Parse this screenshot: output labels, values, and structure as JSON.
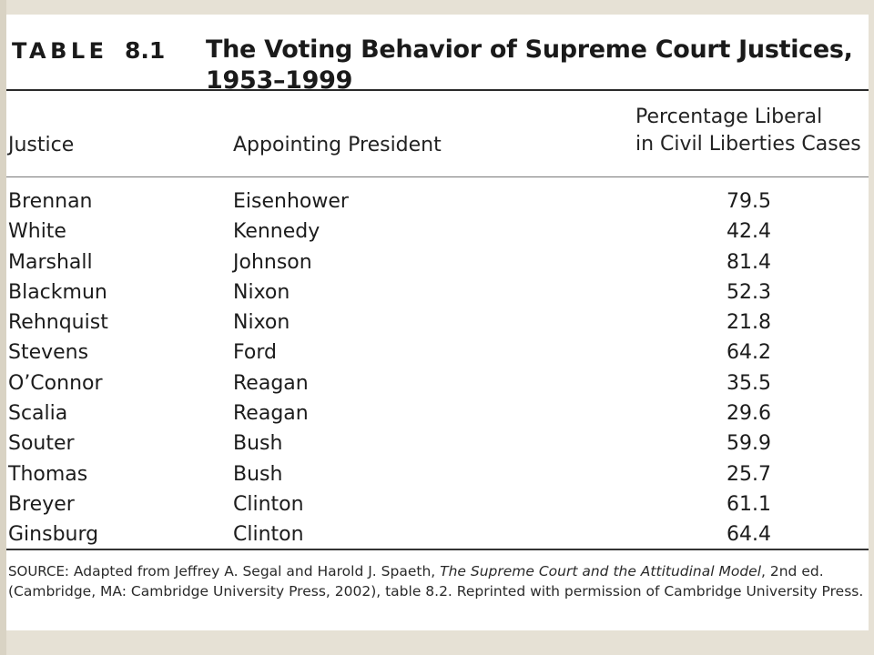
{
  "table": {
    "label": "TABLE",
    "number": "8.1",
    "title_line1": "The Voting Behavior of Supreme Court Justices,",
    "title_line2": "1953–1999"
  },
  "columns": {
    "justice": "Justice",
    "president": "Appointing President",
    "pct_line1": "Percentage Liberal",
    "pct_line2": "in Civil Liberties Cases"
  },
  "rows": [
    {
      "justice": "Brennan",
      "president": "Eisenhower",
      "value": "79.5"
    },
    {
      "justice": "White",
      "president": "Kennedy",
      "value": "42.4"
    },
    {
      "justice": "Marshall",
      "president": "Johnson",
      "value": "81.4"
    },
    {
      "justice": "Blackmun",
      "president": "Nixon",
      "value": "52.3"
    },
    {
      "justice": "Rehnquist",
      "president": "Nixon",
      "value": "21.8"
    },
    {
      "justice": "Stevens",
      "president": "Ford",
      "value": "64.2"
    },
    {
      "justice": "O’Connor",
      "president": "Reagan",
      "value": "35.5"
    },
    {
      "justice": "Scalia",
      "president": "Reagan",
      "value": "29.6"
    },
    {
      "justice": "Souter",
      "president": "Bush",
      "value": "59.9"
    },
    {
      "justice": "Thomas",
      "president": "Bush",
      "value": "25.7"
    },
    {
      "justice": "Breyer",
      "president": "Clinton",
      "value": "61.1"
    },
    {
      "justice": "Ginsburg",
      "president": "Clinton",
      "value": "64.4"
    }
  ],
  "source": {
    "lead": "SOURCE:",
    "text_a": " Adapted from Jeffrey A. Segal and Harold J. Spaeth, ",
    "book_title": "The Supreme Court and the Attitudinal Model",
    "text_b": ", 2nd ed. (Cambridge, MA: Cambridge University Press, 2002), table 8.2. Reprinted with permission of Cambridge University Press."
  }
}
